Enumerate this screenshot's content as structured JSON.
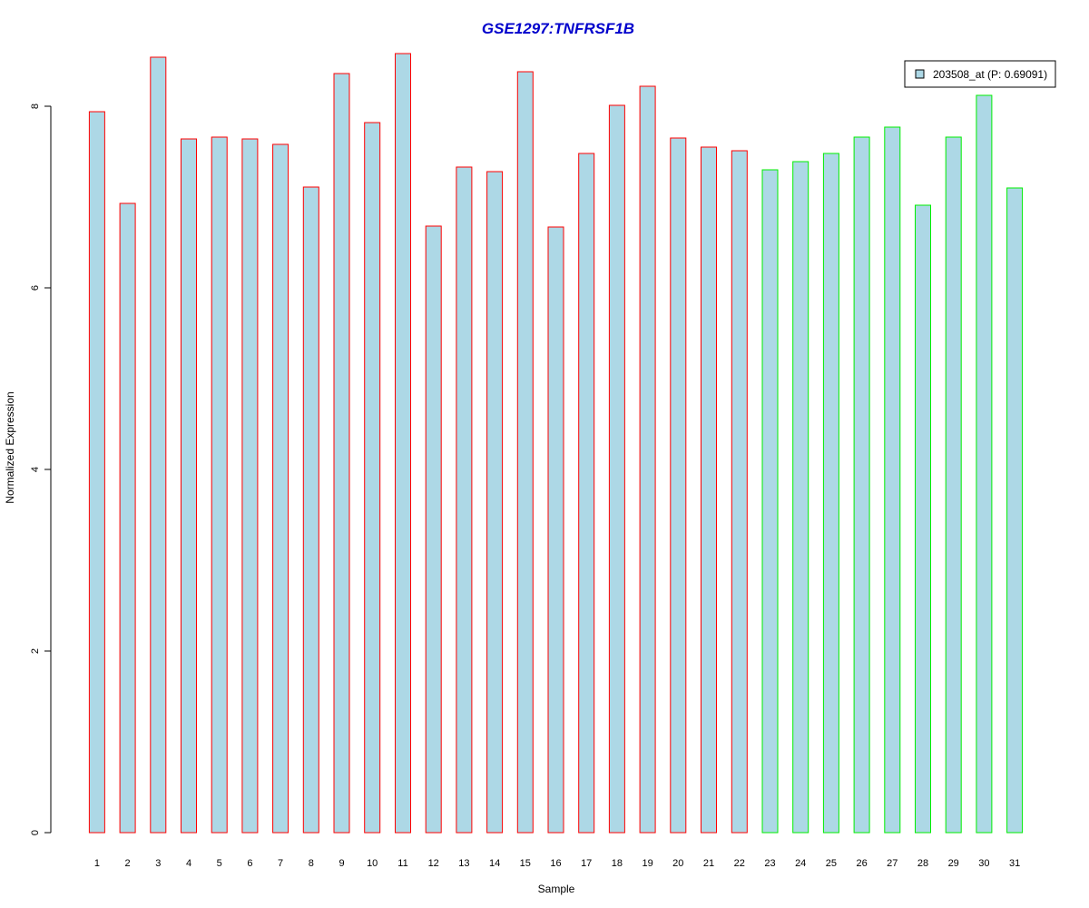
{
  "chart_data": {
    "type": "bar",
    "title": "GSE1297:TNFRSF1B",
    "title_color": "#0000cc",
    "xlabel": "Sample",
    "ylabel": "Normalized Expression",
    "ylim": [
      0,
      8.6
    ],
    "yticks": [
      0,
      2,
      4,
      6,
      8
    ],
    "categories": [
      "1",
      "2",
      "3",
      "4",
      "5",
      "6",
      "7",
      "8",
      "9",
      "10",
      "11",
      "12",
      "13",
      "14",
      "15",
      "16",
      "17",
      "18",
      "19",
      "20",
      "21",
      "22",
      "23",
      "24",
      "25",
      "26",
      "27",
      "28",
      "29",
      "30",
      "31"
    ],
    "series": [
      {
        "name": "203508_at (P: 0.69091)",
        "values": [
          7.94,
          6.93,
          8.54,
          7.64,
          7.66,
          7.64,
          7.58,
          7.11,
          8.36,
          7.82,
          8.58,
          6.68,
          7.33,
          7.28,
          8.38,
          6.67,
          7.48,
          8.01,
          8.22,
          7.65,
          7.55,
          7.51,
          7.3,
          7.39,
          7.48,
          7.66,
          7.77,
          6.91,
          7.66,
          8.12,
          7.1
        ]
      }
    ],
    "bar_fill": "#add8e6",
    "group_border_colors": [
      "#ff0000",
      "#ff0000",
      "#ff0000",
      "#ff0000",
      "#ff0000",
      "#ff0000",
      "#ff0000",
      "#ff0000",
      "#ff0000",
      "#ff0000",
      "#ff0000",
      "#ff0000",
      "#ff0000",
      "#ff0000",
      "#ff0000",
      "#ff0000",
      "#ff0000",
      "#ff0000",
      "#ff0000",
      "#ff0000",
      "#ff0000",
      "#ff0000",
      "#00ee00",
      "#00ee00",
      "#00ee00",
      "#00ee00",
      "#00ee00",
      "#00ee00",
      "#00ee00",
      "#00ee00",
      "#00ee00"
    ],
    "legend_position": "top-right",
    "grid": false
  }
}
